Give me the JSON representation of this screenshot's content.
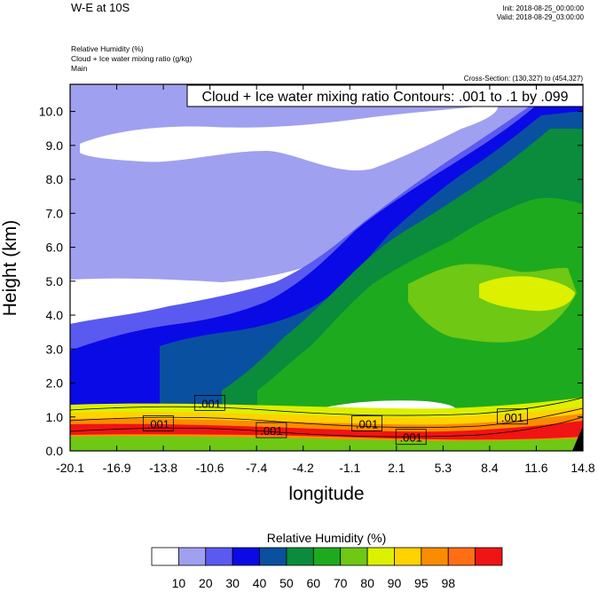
{
  "header": {
    "title": "W-E at 10S",
    "init": "Init: 2018-08-25_00:00:00",
    "valid": "Valid: 2018-08-29_03:00:00",
    "field1": "Relative Humidity   (%)",
    "field2": "Cloud + Ice water mixing ratio   (g/kg)",
    "field3": "Main",
    "cross_section": "Cross-Section: (130,327) to (454,327)"
  },
  "chart_data": {
    "type": "contour",
    "contour_label": "Cloud + Ice water mixing ratio Contours: .001 to .1 by .099",
    "xlabel": "longitude",
    "ylabel": "Height (km)",
    "xlim": [
      -20.1,
      14.8
    ],
    "ylim": [
      0.0,
      10.8
    ],
    "x_ticks": [
      "-20.1",
      "-16.9",
      "-13.8",
      "-10.6",
      "-7.4",
      "-4.2",
      "-1.1",
      "2.1",
      "5.3",
      "8.4",
      "11.6",
      "14.8"
    ],
    "y_ticks": [
      "0.0",
      "1.0",
      "2.0",
      "3.0",
      "4.0",
      "5.0",
      "6.0",
      "7.0",
      "8.0",
      "9.0",
      "10.0"
    ],
    "contour_labels": [
      {
        "text": ".001",
        "x": -10.6,
        "y": 1.4
      },
      {
        "text": ".001",
        "x": -14.1,
        "y": 0.8
      },
      {
        "text": ".001",
        "x": -6.4,
        "y": 0.6
      },
      {
        "text": ".001",
        "x": 0.1,
        "y": 0.8
      },
      {
        "text": ".001",
        "x": 3.1,
        "y": 0.4
      },
      {
        "text": ".001",
        "x": 10.0,
        "y": 1.0
      }
    ],
    "colorbar": {
      "title": "Relative Humidity  (%)",
      "levels": [
        "10",
        "20",
        "30",
        "40",
        "50",
        "60",
        "70",
        "80",
        "90",
        "95",
        "98"
      ],
      "colors": [
        "#ffffff",
        "#a0a0f0",
        "#5a5af0",
        "#0a0ae6",
        "#0a50a0",
        "#0a8c3c",
        "#1eaa1e",
        "#6ec814",
        "#dcf000",
        "#ffd200",
        "#fa8c00",
        "#ff6e14",
        "#f01414"
      ]
    }
  }
}
